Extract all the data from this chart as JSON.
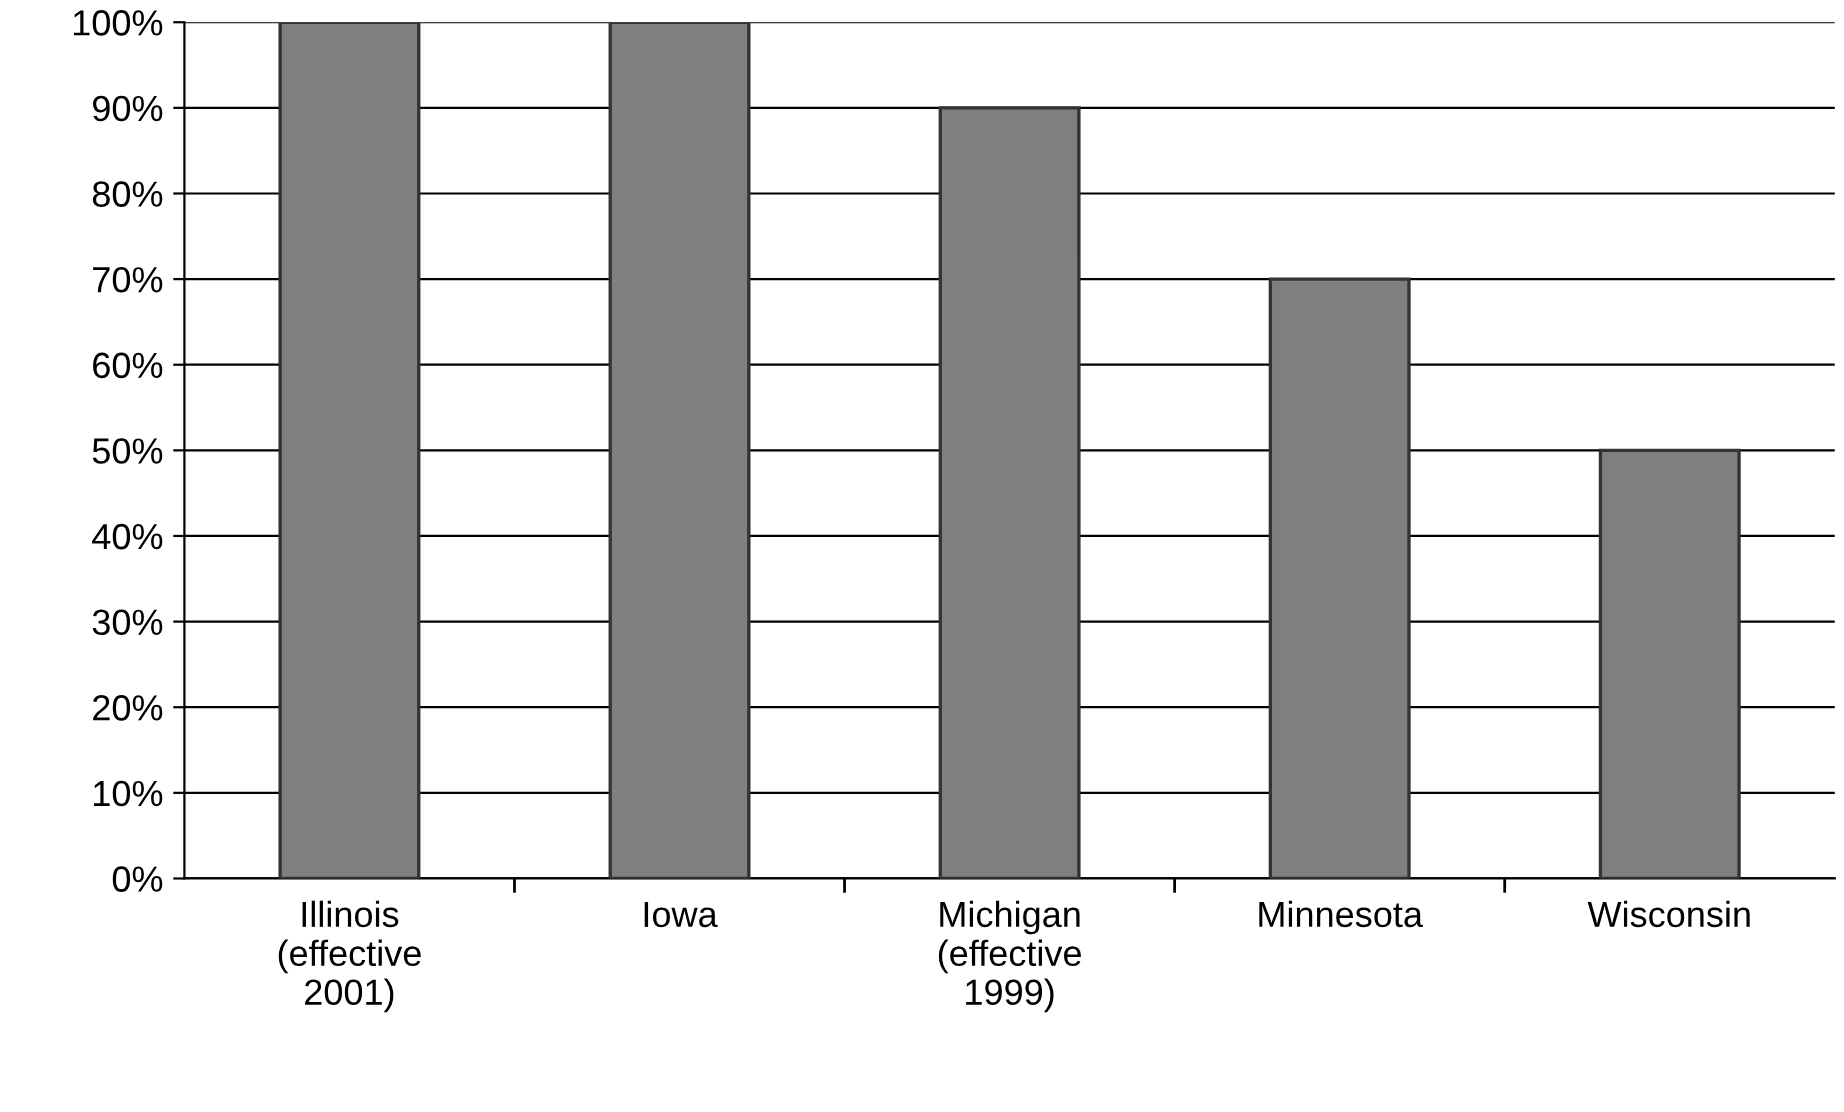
{
  "chart_data": {
    "type": "bar",
    "categories": [
      "Illinois\n(effective\n2001)",
      "Iowa",
      "Michigan\n(effective\n1999)",
      "Minnesota",
      "Wisconsin"
    ],
    "values": [
      100,
      100,
      90,
      70,
      50
    ],
    "color": "#7f7f7f",
    "ylim": [
      0,
      100
    ],
    "yticks": [
      {
        "value": 0,
        "label": "0%"
      },
      {
        "value": 10,
        "label": "10%"
      },
      {
        "value": 20,
        "label": "20%"
      },
      {
        "value": 30,
        "label": "30%"
      },
      {
        "value": 40,
        "label": "40%"
      },
      {
        "value": 50,
        "label": "50%"
      },
      {
        "value": 60,
        "label": "60%"
      },
      {
        "value": 70,
        "label": "70%"
      },
      {
        "value": 80,
        "label": "80%"
      },
      {
        "value": 90,
        "label": "90%"
      },
      {
        "value": 100,
        "label": "100%"
      }
    ],
    "grid": "y"
  }
}
